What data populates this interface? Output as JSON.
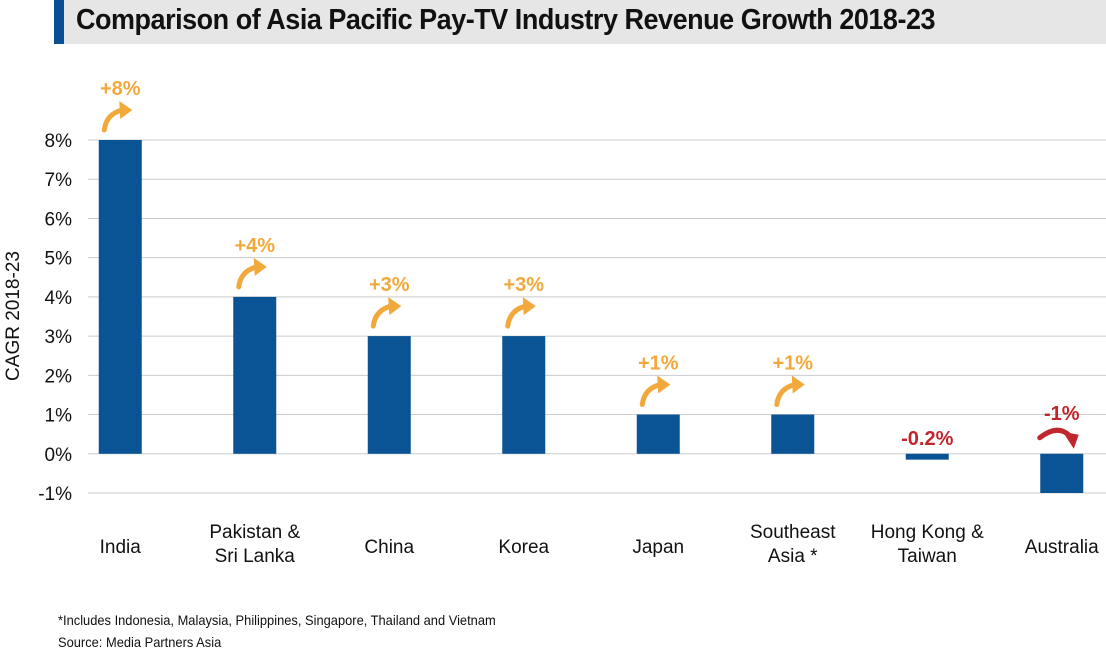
{
  "title": "Comparison of Asia Pacific Pay-TV Industry Revenue Growth 2018-23",
  "footnotes": {
    "note": "*Includes Indonesia, Malaysia, Philippines, Singapore, Thailand and Vietnam",
    "source": "Source: Media Partners Asia"
  },
  "colors": {
    "bar": "#0a5394",
    "positive_label": "#f2a93b",
    "negative_label": "#c0272d",
    "grid": "#cccccc"
  },
  "chart_data": {
    "type": "bar",
    "ylabel": "CAGR 2018-23",
    "ylim": [
      -1,
      8
    ],
    "yticks": [
      -1,
      0,
      1,
      2,
      3,
      4,
      5,
      6,
      7,
      8
    ],
    "ytick_labels": [
      "-1%",
      "0%",
      "1%",
      "2%",
      "3%",
      "4%",
      "5%",
      "6%",
      "7%",
      "8%"
    ],
    "grid": true,
    "categories": [
      [
        "India"
      ],
      [
        "Pakistan &",
        "Sri Lanka"
      ],
      [
        "China"
      ],
      [
        "Korea"
      ],
      [
        "Japan"
      ],
      [
        "Southeast",
        "Asia *"
      ],
      [
        "Hong Kong &",
        "Taiwan"
      ],
      [
        "Australia"
      ]
    ],
    "values": [
      8,
      4,
      3,
      3,
      1,
      1,
      -0.15,
      -1
    ],
    "data_labels": [
      "+8%",
      "+4%",
      "+3%",
      "+3%",
      "+1%",
      "+1%",
      "-0.2%",
      "-1%"
    ],
    "arrows": [
      "up",
      "up",
      "up",
      "up",
      "up",
      "up",
      "none",
      "down"
    ]
  }
}
